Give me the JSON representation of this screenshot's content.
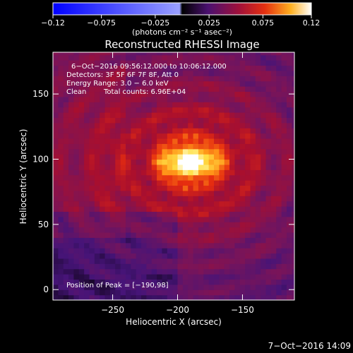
{
  "colorbar": {
    "min": -0.12,
    "max": 0.12,
    "ticks": [
      -0.12,
      -0.075,
      -0.025,
      0.025,
      0.075,
      0.12
    ],
    "tick_labels": [
      "−0.12",
      "−0.075",
      "−0.025",
      "0.025",
      "0.075",
      "0.12"
    ],
    "unit_label": "(photons cm⁻² s⁻¹ asec⁻²)",
    "colormap": "black-purple-red-orange-yellow-white (negative: blue)"
  },
  "chart_data": {
    "type": "heatmap",
    "title": "Reconstructed RHESSI Image",
    "xlabel": "Heliocentric X (arcsec)",
    "ylabel": "Heliocentric Y (arcsec)",
    "xlim": [
      -296,
      -110
    ],
    "ylim": [
      -8,
      182
    ],
    "x_ticks": [
      -250,
      -200,
      -150
    ],
    "x_tick_labels": [
      "−250",
      "−200",
      "−150"
    ],
    "y_ticks": [
      0,
      50,
      100,
      150
    ],
    "y_tick_labels": [
      "0",
      "50",
      "100",
      "150"
    ],
    "peak": {
      "x": -190,
      "y": 98,
      "value": 0.12
    },
    "grid": false,
    "annotations": {
      "time_range": "6−Oct−2016 09:56:12.000 to 10:06:12.000",
      "detectors": "Detectors: 3F 5F 6F 7F 8F, Att 0",
      "energy": "Energy Range: 3.0 − 6.0 keV",
      "clean_label": "Clean",
      "total_counts": "Total counts: 6.96E+04",
      "peak_position": "Position of Peak = [−190,98]"
    }
  },
  "footer": {
    "timestamp": "7−Oct−2016 14:09"
  }
}
